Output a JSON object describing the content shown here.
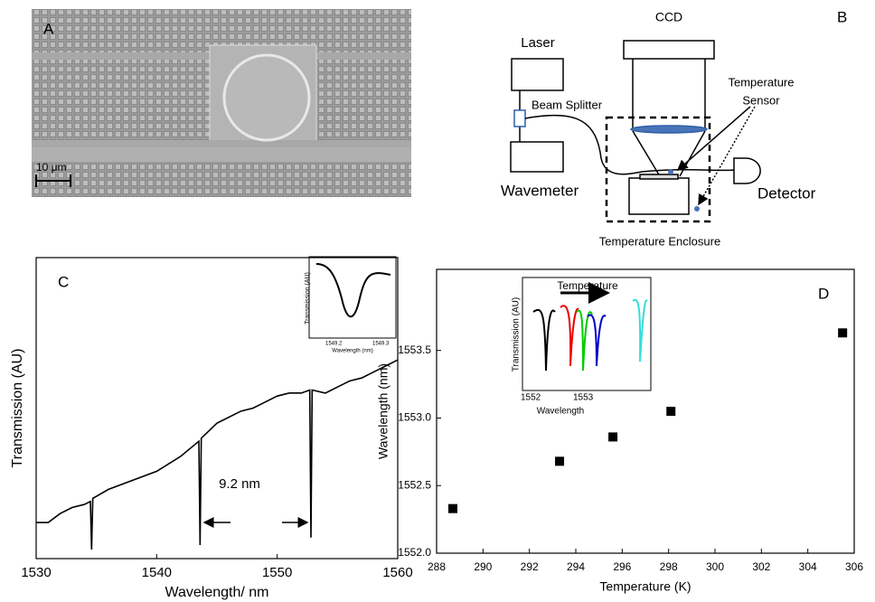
{
  "panel_a": {
    "label": "A",
    "scale_bar": "10 μm"
  },
  "panel_b": {
    "label": "B",
    "laser": "Laser",
    "ccd": "CCD",
    "beam_splitter": "Beam Splitter",
    "sensor_line1": "Temperature",
    "sensor_line2": "Sensor",
    "wavemeter": "Wavemeter",
    "detector": "Detector",
    "enclosure": "Temperature Enclosure"
  },
  "chart_data": [
    {
      "type": "line",
      "panel": "C",
      "xlabel": "Wavelength/ nm",
      "ylabel": "Transmission (AU)",
      "annotation": "9.2 nm",
      "color": "#000000",
      "x": [
        1530,
        1531,
        1532,
        1533,
        1534,
        1534.5,
        1534.6,
        1534.7,
        1536,
        1538,
        1540,
        1542,
        1543.5,
        1543.6,
        1543.7,
        1545,
        1546,
        1547,
        1548,
        1549,
        1550,
        1551,
        1552,
        1552.7,
        1552.8,
        1552.9,
        1554,
        1555,
        1556,
        1557,
        1558,
        1559,
        1560
      ],
      "values": [
        0.12,
        0.12,
        0.15,
        0.17,
        0.18,
        0.19,
        0.03,
        0.2,
        0.23,
        0.26,
        0.29,
        0.34,
        0.39,
        0.045,
        0.4,
        0.45,
        0.47,
        0.49,
        0.5,
        0.52,
        0.54,
        0.55,
        0.55,
        0.56,
        0.07,
        0.56,
        0.55,
        0.57,
        0.59,
        0.6,
        0.62,
        0.64,
        0.66
      ],
      "xlim": [
        1530,
        1560
      ],
      "xticks": [
        1530,
        1540,
        1550,
        1560
      ],
      "ylim": [
        0,
        1
      ],
      "inset": {
        "ylabel": "Transmission (AU)",
        "xlabel": "Wavelength (nm)",
        "xticklabels": [
          "1549.2",
          "1549.3"
        ]
      }
    },
    {
      "type": "scatter",
      "panel": "D",
      "xlabel": "Temperature (K)",
      "ylabel": "Wavelength (nm)",
      "color": "#000000",
      "x": [
        288.7,
        293.3,
        295.6,
        298.1,
        305.5
      ],
      "values": [
        1552.33,
        1552.68,
        1552.86,
        1553.05,
        1553.63
      ],
      "xlim": [
        288,
        306
      ],
      "xticks": [
        288,
        290,
        292,
        294,
        296,
        298,
        300,
        302,
        304,
        306
      ],
      "ylim": [
        1552.0,
        1554.1
      ],
      "yticks": [
        {
          "value": 1552,
          "label": "1552.0"
        },
        1552.5,
        {
          "value": 1553,
          "label": "1553.0"
        },
        1553.5
      ],
      "inset": {
        "title": "Temperature",
        "ylabel": "Transmission (AU)",
        "xlabel": "Wavelength",
        "xticklabels": [
          "1552",
          "1553"
        ]
      }
    }
  ]
}
